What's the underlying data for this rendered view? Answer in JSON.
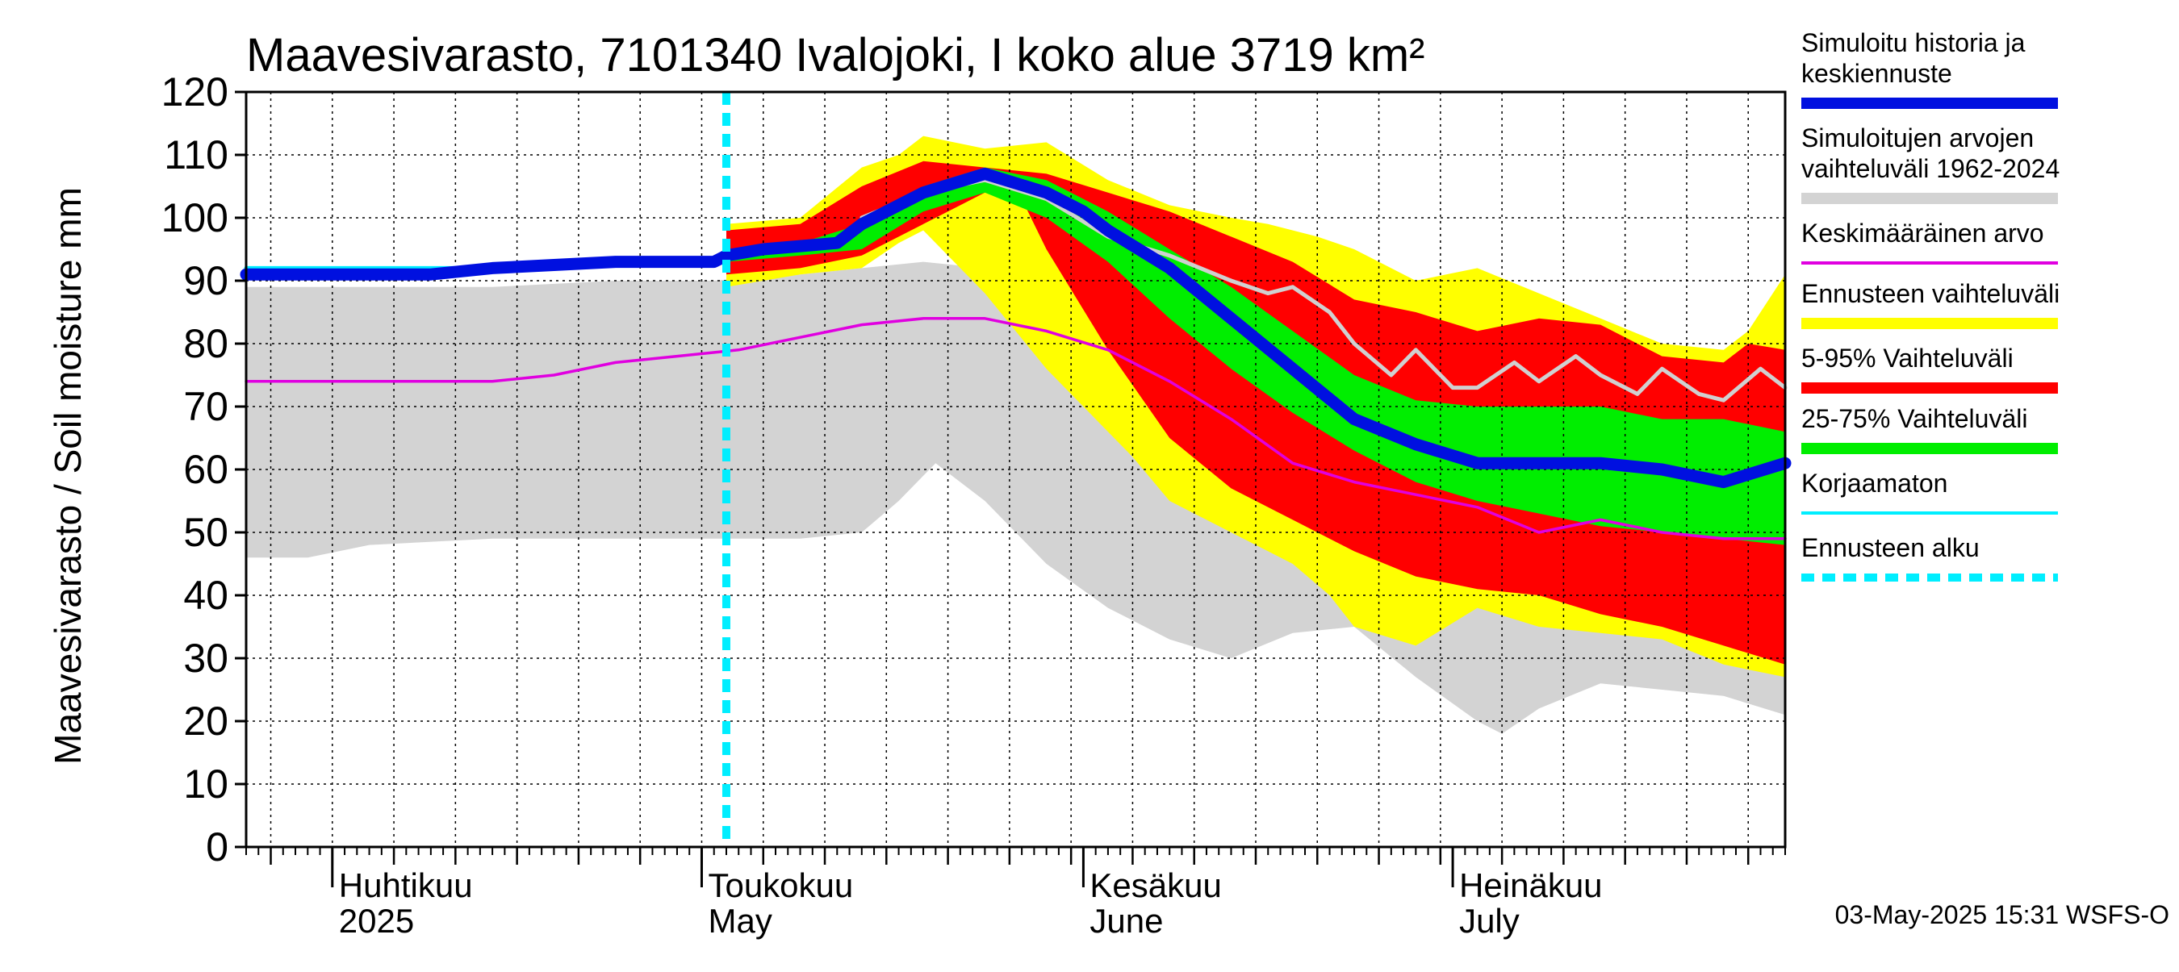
{
  "chart_data": {
    "type": "area",
    "title": "Maavesivarasto, 7101340 Ivalojoki, I koko alue 3719 km²",
    "ylabel": "Maavesivarasto / Soil moisture   mm",
    "xlabel": "",
    "ylim": [
      0,
      120
    ],
    "yticks": [
      0,
      10,
      20,
      30,
      40,
      50,
      60,
      70,
      80,
      90,
      100,
      110,
      120
    ],
    "grid": true,
    "x_unit": "day index from 2025-03-25",
    "x_range": [
      0,
      125
    ],
    "months": [
      {
        "day": 7,
        "label_fi": "Huhtikuu",
        "label_en": "2025"
      },
      {
        "day": 37,
        "label_fi": "Toukokuu",
        "label_en": "May"
      },
      {
        "day": 68,
        "label_fi": "Kesäkuu",
        "label_en": "June"
      },
      {
        "day": 98,
        "label_fi": "Heinäkuu",
        "label_en": "July"
      }
    ],
    "forecast_start_day": 39,
    "timestamp": "03-May-2025 15:31 WSFS-O",
    "legend": [
      {
        "key": "sim",
        "label": "Simuloitu historia ja\nkeskiennuste",
        "color": "#0010e0",
        "style": "thick"
      },
      {
        "key": "range",
        "label": "Simuloitujen arvojen\nvaihteluväli 1962-2024",
        "color": "#d3d3d3",
        "style": "thick"
      },
      {
        "key": "mean",
        "label": "Keskimääräinen arvo",
        "color": "#e000e0",
        "style": "thin"
      },
      {
        "key": "ens",
        "label": "Ennusteen vaihteluväli",
        "color": "#ffff00",
        "style": "thick"
      },
      {
        "key": "p595",
        "label": "5-95% Vaihteluväli",
        "color": "#ff0000",
        "style": "thick"
      },
      {
        "key": "p2575",
        "label": "25-75% Vaihteluväli",
        "color": "#00ee00",
        "style": "thick"
      },
      {
        "key": "uncorr",
        "label": "Korjaamaton",
        "color": "#00eeff",
        "style": "thin"
      },
      {
        "key": "fstart",
        "label": "Ennusteen alku",
        "color": "#00eeff",
        "style": "dashed"
      }
    ],
    "series": [
      {
        "name": "Simuloitujen arvojen vaihteluväli 1962-2024 (max)",
        "color": "#d3d3d3",
        "x": [
          0,
          10,
          20,
          30,
          38,
          45,
          50,
          55,
          60,
          62,
          65,
          70,
          75,
          80,
          85,
          90,
          95,
          100,
          105,
          110,
          115,
          120,
          125
        ],
        "values": [
          89,
          89,
          89,
          90,
          90,
          91,
          92,
          93,
          92,
          92,
          92,
          92,
          93,
          91,
          90,
          89,
          82,
          80,
          78,
          77,
          76,
          75,
          73
        ]
      },
      {
        "name": "Simuloitujen arvojen vaihteluväli 1962-2024 (min)",
        "color": "#d3d3d3",
        "x": [
          0,
          5,
          10,
          20,
          30,
          38,
          45,
          50,
          53,
          56,
          60,
          65,
          70,
          75,
          80,
          85,
          90,
          95,
          100,
          102,
          105,
          110,
          115,
          120,
          125
        ],
        "values": [
          46,
          46,
          48,
          49,
          49,
          49,
          49,
          50,
          55,
          61,
          55,
          45,
          38,
          33,
          30,
          34,
          35,
          27,
          20,
          18,
          22,
          26,
          25,
          24,
          21
        ]
      },
      {
        "name": "Ennusteen vaihteluväli (max)",
        "color": "#ffff00",
        "x": [
          39,
          45,
          50,
          53,
          55,
          60,
          65,
          70,
          75,
          80,
          83,
          87,
          90,
          95,
          100,
          105,
          110,
          115,
          120,
          122,
          125
        ],
        "values": [
          99,
          100,
          108,
          110,
          113,
          111,
          112,
          106,
          102,
          100,
          99,
          97,
          95,
          90,
          92,
          88,
          84,
          80,
          79,
          82,
          91
        ]
      },
      {
        "name": "Ennusteen vaihteluväli (min)",
        "color": "#ffff00",
        "x": [
          39,
          45,
          50,
          53,
          55,
          60,
          65,
          70,
          72,
          75,
          80,
          85,
          88,
          90,
          95,
          100,
          105,
          110,
          115,
          120,
          125
        ],
        "values": [
          89,
          91,
          92,
          96,
          98,
          88,
          76,
          66,
          62,
          55,
          50,
          45,
          40,
          35,
          32,
          38,
          35,
          34,
          33,
          29,
          27
        ]
      },
      {
        "name": "5-95% Vaihteluväli (max)",
        "color": "#ff0000",
        "x": [
          39,
          45,
          50,
          55,
          60,
          65,
          70,
          75,
          80,
          85,
          90,
          95,
          100,
          105,
          110,
          115,
          120,
          122,
          125
        ],
        "values": [
          98,
          99,
          105,
          109,
          108,
          107,
          104,
          101,
          97,
          93,
          87,
          85,
          82,
          84,
          83,
          78,
          77,
          80,
          79
        ]
      },
      {
        "name": "5-95% Vaihteluväli (min)",
        "color": "#ff0000",
        "x": [
          39,
          45,
          50,
          55,
          60,
          63,
          65,
          70,
          75,
          80,
          85,
          90,
          95,
          100,
          105,
          110,
          115,
          120,
          125
        ],
        "values": [
          91,
          92,
          94,
          99,
          104,
          103,
          95,
          79,
          65,
          57,
          52,
          47,
          43,
          41,
          40,
          37,
          35,
          32,
          29
        ]
      },
      {
        "name": "25-75% Vaihteluväli (max)",
        "color": "#00ee00",
        "x": [
          39,
          45,
          50,
          55,
          60,
          65,
          70,
          75,
          80,
          85,
          90,
          95,
          100,
          105,
          110,
          115,
          120,
          125
        ],
        "values": [
          95,
          96,
          99,
          105,
          108,
          106,
          101,
          95,
          89,
          82,
          75,
          71,
          70,
          70,
          70,
          68,
          68,
          66
        ]
      },
      {
        "name": "25-75% Vaihteluväli (min)",
        "color": "#00ee00",
        "x": [
          39,
          45,
          50,
          55,
          60,
          65,
          70,
          75,
          80,
          85,
          90,
          95,
          100,
          105,
          110,
          115,
          120,
          125
        ],
        "values": [
          93,
          94,
          95,
          101,
          104,
          100,
          93,
          84,
          76,
          69,
          63,
          58,
          55,
          53,
          51,
          50,
          49,
          48
        ]
      },
      {
        "name": "Korjaamaton",
        "color": "#00eeff",
        "x": [
          0,
          10,
          20,
          30,
          38,
          39
        ],
        "values": [
          92,
          92,
          92,
          92.5,
          93,
          93.5
        ]
      },
      {
        "name": "Keskimääräinen arvo",
        "color": "#e000e0",
        "x": [
          0,
          10,
          15,
          20,
          25,
          30,
          35,
          40,
          45,
          50,
          55,
          60,
          65,
          70,
          75,
          80,
          85,
          90,
          95,
          100,
          105,
          110,
          115,
          120,
          125
        ],
        "values": [
          74,
          74,
          74,
          74,
          75,
          77,
          78,
          79,
          81,
          83,
          84,
          84,
          82,
          79,
          74,
          68,
          61,
          58,
          56,
          54,
          50,
          52,
          50,
          49,
          49
        ]
      },
      {
        "name": "Simuloitu (korjaamaton keskiennuste)",
        "color": "#d0d0d0",
        "x": [
          50,
          55,
          60,
          65,
          70,
          75,
          80,
          83,
          85,
          88,
          90,
          93,
          95,
          98,
          100,
          103,
          105,
          108,
          110,
          113,
          115,
          118,
          120,
          123,
          125
        ],
        "values": [
          100,
          104,
          106,
          103,
          97,
          94,
          90,
          88,
          89,
          85,
          80,
          75,
          79,
          73,
          73,
          77,
          74,
          78,
          75,
          72,
          76,
          72,
          71,
          76,
          73
        ]
      },
      {
        "name": "Simuloitu historia ja keskiennuste",
        "color": "#0010e0",
        "x": [
          0,
          10,
          15,
          20,
          25,
          30,
          35,
          38,
          39,
          42,
          45,
          48,
          50,
          55,
          60,
          65,
          68,
          70,
          75,
          80,
          85,
          90,
          95,
          100,
          105,
          110,
          115,
          120,
          125
        ],
        "values": [
          91,
          91,
          91,
          92,
          92.5,
          93,
          93,
          93,
          94,
          95,
          95.5,
          96,
          99,
          104,
          107,
          104,
          101,
          98,
          92,
          84,
          76,
          68,
          64,
          61,
          61,
          61,
          60,
          58,
          61
        ]
      }
    ]
  }
}
